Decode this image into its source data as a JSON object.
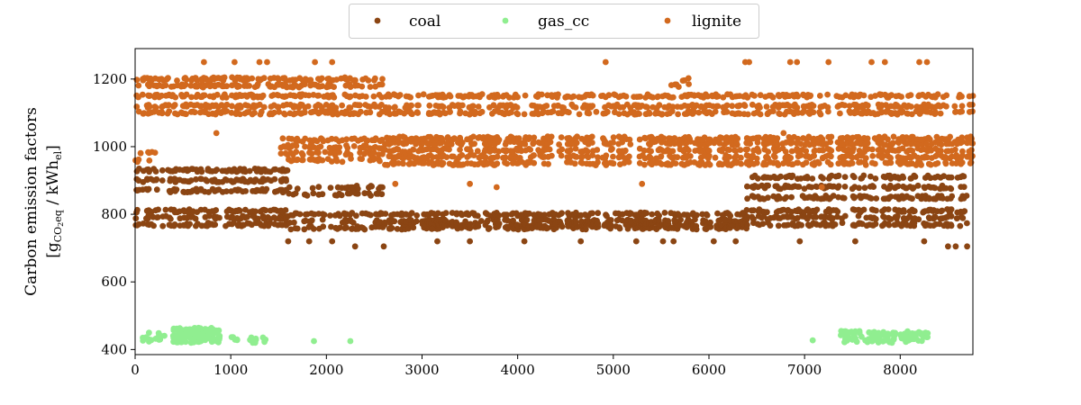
{
  "chart_data": {
    "type": "scatter",
    "title": "",
    "xlabel": "",
    "ylabel": {
      "line1": "Carbon emission factors",
      "open_bracket": "[g",
      "sub1": "CO",
      "sub1_2": "2",
      "sub1_eq": "eq",
      "middle": " / kWh",
      "sub2": "el",
      "close_bracket": "]"
    },
    "xlim": [
      0,
      8760
    ],
    "ylim": [
      385,
      1290
    ],
    "xticks": [
      "0",
      "1000",
      "2000",
      "3000",
      "4000",
      "5000",
      "6000",
      "7000",
      "8000"
    ],
    "yticks": [
      "400",
      "600",
      "800",
      "1000",
      "1200"
    ],
    "grid": false,
    "legend_position": "top-center",
    "series": [
      {
        "name": "coal",
        "color": "#8B4513",
        "segments": [
          {
            "x": [
              0,
              1600
            ],
            "levels": [
              770,
              790,
              810,
              870,
              900,
              930
            ],
            "density": 0.9
          },
          {
            "x": [
              1600,
              2600
            ],
            "levels": [
              760,
              780,
              800,
              860,
              880
            ],
            "density": 0.6
          },
          {
            "x": [
              2600,
              6400
            ],
            "levels": [
              760,
              770,
              780,
              800
            ],
            "density": 0.8
          },
          {
            "x": [
              6400,
              8700
            ],
            "levels": [
              770,
              790,
              810,
              850,
              880,
              910
            ],
            "density": 0.85
          }
        ],
        "outliers": [
          [
            1600,
            720
          ],
          [
            1820,
            720
          ],
          [
            2060,
            720
          ],
          [
            2300,
            705
          ],
          [
            2600,
            705
          ],
          [
            3160,
            720
          ],
          [
            3500,
            720
          ],
          [
            4070,
            720
          ],
          [
            4660,
            720
          ],
          [
            5240,
            720
          ],
          [
            5520,
            720
          ],
          [
            5630,
            720
          ],
          [
            6050,
            720
          ],
          [
            6280,
            720
          ],
          [
            6950,
            720
          ],
          [
            7530,
            720
          ],
          [
            8250,
            720
          ],
          [
            8500,
            705
          ],
          [
            8580,
            705
          ],
          [
            8700,
            705
          ]
        ]
      },
      {
        "name": "gas_cc",
        "color": "#90EE90",
        "segments": [
          {
            "x": [
              60,
              300
            ],
            "levels": [
              425,
              435,
              445
            ],
            "density": 0.5
          },
          {
            "x": [
              400,
              880
            ],
            "levels": [
              425,
              435,
              445,
              455,
              460
            ],
            "density": 1.0
          },
          {
            "x": [
              1000,
              1370
            ],
            "levels": [
              425,
              432
            ],
            "density": 0.5
          },
          {
            "x": [
              7050,
              7300
            ],
            "levels": [
              425
            ],
            "density": 0.4
          },
          {
            "x": [
              7380,
              8300
            ],
            "levels": [
              425,
              435,
              445,
              450
            ],
            "density": 0.5
          }
        ],
        "outliers": [
          [
            1870,
            425
          ],
          [
            2250,
            425
          ]
        ]
      },
      {
        "name": "lignite",
        "color": "#D2691E",
        "segments": [
          {
            "x": [
              0,
              2600
            ],
            "levels": [
              1100,
              1120,
              1150,
              1180,
              1200
            ],
            "density": 0.9
          },
          {
            "x": [
              0,
              220
            ],
            "levels": [
              960,
              980
            ],
            "density": 0.5
          },
          {
            "x": [
              1500,
              2600
            ],
            "levels": [
              960,
              980,
              1000,
              1020
            ],
            "density": 0.7
          },
          {
            "x": [
              2600,
              8760
            ],
            "levels": [
              1100,
              1120,
              1150
            ],
            "density": 0.8
          },
          {
            "x": [
              2600,
              8760
            ],
            "levels": [
              950,
              970,
              990,
              1010,
              1025
            ],
            "density": 0.8
          },
          {
            "x": [
              5600,
              5800
            ],
            "levels": [
              1180,
              1200
            ],
            "density": 0.5
          }
        ],
        "outliers": [
          [
            80,
            1200
          ],
          [
            720,
            1250
          ],
          [
            1040,
            1250
          ],
          [
            1300,
            1250
          ],
          [
            1380,
            1250
          ],
          [
            1880,
            1250
          ],
          [
            2060,
            1250
          ],
          [
            4920,
            1250
          ],
          [
            6380,
            1250
          ],
          [
            6420,
            1250
          ],
          [
            6850,
            1250
          ],
          [
            6920,
            1250
          ],
          [
            7250,
            1250
          ],
          [
            7700,
            1250
          ],
          [
            7840,
            1250
          ],
          [
            8200,
            1250
          ],
          [
            8280,
            1250
          ],
          [
            2720,
            890
          ],
          [
            3500,
            890
          ],
          [
            3780,
            880
          ],
          [
            5300,
            890
          ],
          [
            7180,
            880
          ],
          [
            850,
            1040
          ],
          [
            6780,
            1040
          ]
        ]
      }
    ]
  }
}
